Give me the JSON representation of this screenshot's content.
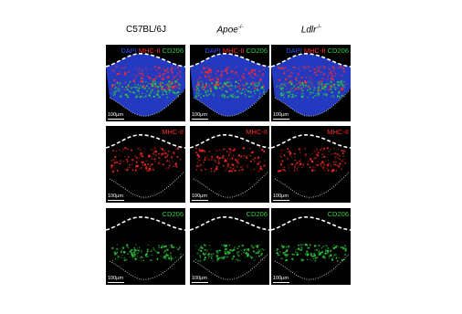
{
  "columns": [
    {
      "name": "C57BL/6J",
      "italic": false
    },
    {
      "name": "Apoe",
      "sup": "-/-",
      "italic": true
    },
    {
      "name": "Ldlr",
      "sup": "-/-",
      "italic": true
    }
  ],
  "rows": [
    {
      "stains": [
        {
          "label": "DAPI",
          "color": "#2f4cff"
        },
        {
          "label": "MHC-II",
          "color": "#ff2a2a"
        },
        {
          "label": "CD206",
          "color": "#2ecc40"
        }
      ]
    },
    {
      "stains": [
        {
          "label": "MHC-II",
          "color": "#ff2a2a"
        }
      ]
    },
    {
      "stains": [
        {
          "label": "CD206",
          "color": "#2ecc40"
        }
      ]
    }
  ],
  "scale_bar": "100μm"
}
